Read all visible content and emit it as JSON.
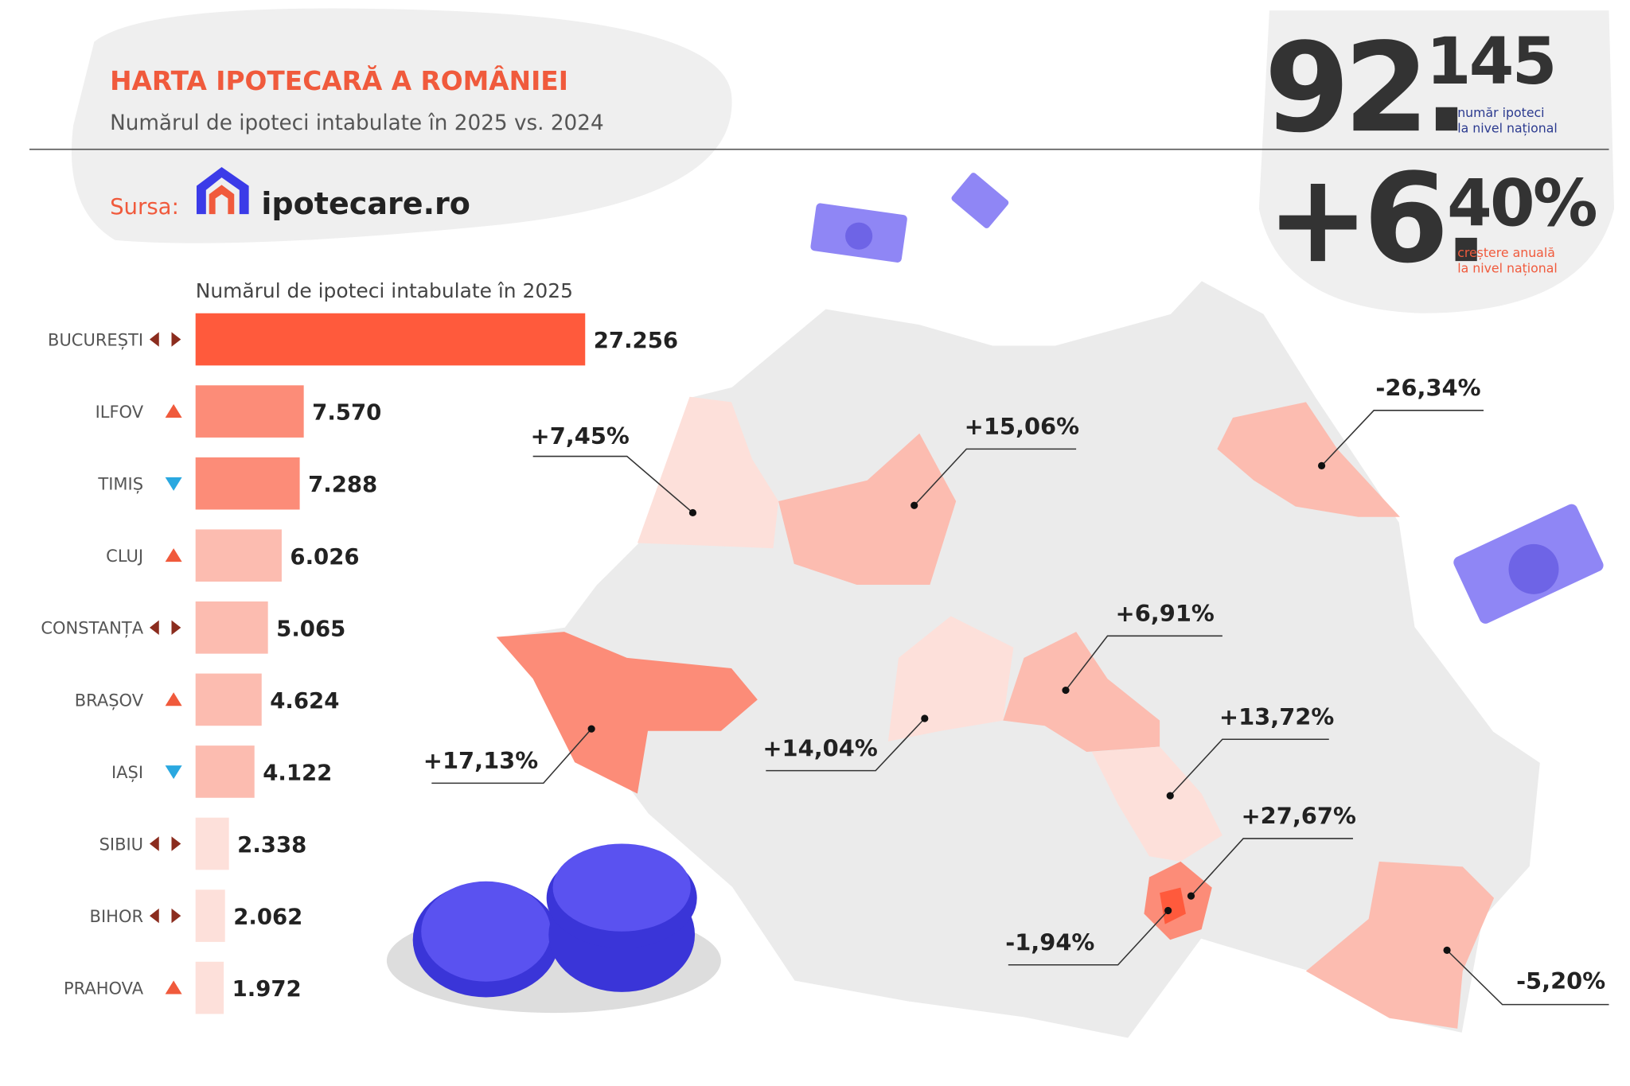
{
  "header": {
    "title": "HARTA IPOTECARĂ A ROMÂNIEI",
    "subtitle": "Numărul de ipoteci intabulate în 2025 vs. 2024",
    "source_label": "Sursa:",
    "source_name": "ipotecare.ro"
  },
  "stats": {
    "count_main": "92.",
    "count_rest": "145",
    "count_caption": [
      "număr ipoteci",
      "la nivel național"
    ],
    "growth_main": "+6.",
    "growth_rest": "40%",
    "growth_caption": [
      "creștere anuală",
      "la nivel național"
    ]
  },
  "chart_data": {
    "type": "bar",
    "orientation": "horizontal",
    "title": "Numărul de ipoteci intabulate în 2025",
    "categories": [
      "BUCUREȘTI",
      "ILFOV",
      "TIMIȘ",
      "CLUJ",
      "CONSTANȚA",
      "BRAȘOV",
      "IAȘI",
      "SIBIU",
      "BIHOR",
      "PRAHOVA"
    ],
    "values": [
      27256,
      7570,
      7288,
      6026,
      5065,
      4624,
      4122,
      2338,
      2062,
      1972
    ],
    "value_labels": [
      "27.256",
      "7.570",
      "7.288",
      "6.026",
      "5.065",
      "4.624",
      "4.122",
      "2.338",
      "2.062",
      "1.972"
    ],
    "colors": [
      "#ff5a3c",
      "#fc8c78",
      "#fc8c78",
      "#fcbcb0",
      "#fcbcb0",
      "#fcbcb0",
      "#fcbcb0",
      "#fde0da",
      "#fde0da",
      "#fde0da"
    ],
    "trends": [
      "both",
      "up",
      "down",
      "up",
      "both",
      "up",
      "down",
      "both",
      "both",
      "up"
    ]
  },
  "map": {
    "labels": [
      "+7,45%",
      "+15,06%",
      "-26,34%",
      "+6,91%",
      "+17,13%",
      "+14,04%",
      "+13,72%",
      "+27,67%",
      "-1,94%",
      "-5,20%"
    ]
  }
}
